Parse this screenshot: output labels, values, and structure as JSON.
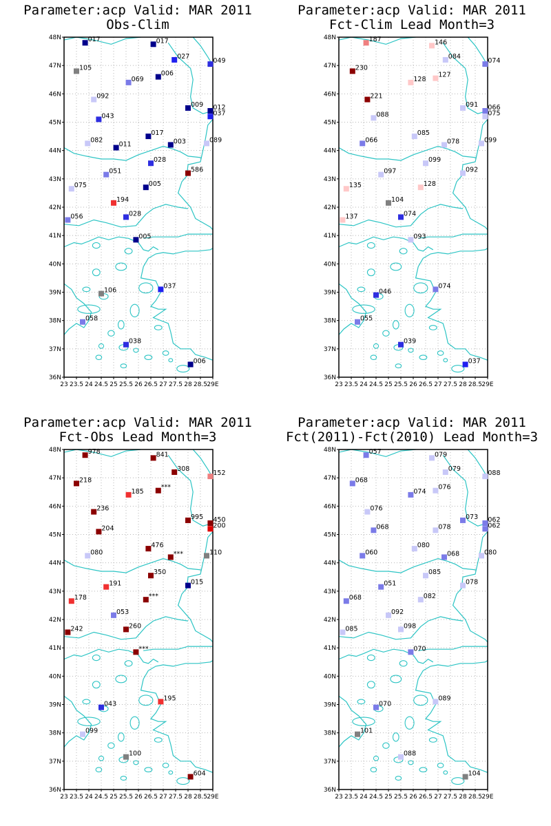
{
  "chart_data": [
    {
      "type": "scatter",
      "title": "Parameter:acp Valid: MAR 2011",
      "subtitle": "Obs-Clim",
      "xlim": [
        23,
        29
      ],
      "ylim": [
        36,
        48
      ],
      "xticks": [
        "23",
        "23.5",
        "24",
        "24.5",
        "25",
        "25.5",
        "26",
        "26.5",
        "27",
        "27.5",
        "28",
        "28.5",
        "29E"
      ],
      "yticks": [
        "36N",
        "37N",
        "38N",
        "39N",
        "40N",
        "41N",
        "42N",
        "43N",
        "44N",
        "45N",
        "46N",
        "47N",
        "48N"
      ],
      "stations": [
        {
          "lon": 23.85,
          "lat": 47.8,
          "label": "017",
          "color": "#00008b"
        },
        {
          "lon": 26.6,
          "lat": 47.75,
          "label": "017",
          "color": "#00008b"
        },
        {
          "lon": 27.45,
          "lat": 47.2,
          "label": "027",
          "color": "#2020f0"
        },
        {
          "lon": 28.9,
          "lat": 47.05,
          "label": "049",
          "color": "#2e2ee0"
        },
        {
          "lon": 23.5,
          "lat": 46.8,
          "label": "105",
          "color": "#808080"
        },
        {
          "lon": 25.6,
          "lat": 46.4,
          "label": "069",
          "color": "#7b7be8"
        },
        {
          "lon": 26.8,
          "lat": 46.6,
          "label": "006",
          "color": "#00008b"
        },
        {
          "lon": 24.2,
          "lat": 45.8,
          "label": "092",
          "color": "#c8c8f8"
        },
        {
          "lon": 28.0,
          "lat": 45.5,
          "label": "009",
          "color": "#00008b"
        },
        {
          "lon": 28.9,
          "lat": 45.4,
          "label": "012",
          "color": "#00008b"
        },
        {
          "lon": 28.9,
          "lat": 45.2,
          "label": "037",
          "color": "#2020f0"
        },
        {
          "lon": 24.4,
          "lat": 45.1,
          "label": "043",
          "color": "#2e2ee0"
        },
        {
          "lon": 26.4,
          "lat": 44.5,
          "label": "017",
          "color": "#00008b"
        },
        {
          "lon": 23.95,
          "lat": 44.25,
          "label": "082",
          "color": "#c8c8f8"
        },
        {
          "lon": 25.1,
          "lat": 44.1,
          "label": "011",
          "color": "#00008b"
        },
        {
          "lon": 27.3,
          "lat": 44.2,
          "label": "003",
          "color": "#00008b"
        },
        {
          "lon": 28.75,
          "lat": 44.25,
          "label": "089",
          "color": "#c8c8f8"
        },
        {
          "lon": 26.5,
          "lat": 43.55,
          "label": "028",
          "color": "#2e2ee0"
        },
        {
          "lon": 28.0,
          "lat": 43.2,
          "label": "586",
          "color": "#8b0000"
        },
        {
          "lon": 24.7,
          "lat": 43.15,
          "label": "051",
          "color": "#7b7be8"
        },
        {
          "lon": 23.3,
          "lat": 42.65,
          "label": "075",
          "color": "#c8c8f8"
        },
        {
          "lon": 26.3,
          "lat": 42.7,
          "label": "005",
          "color": "#00008b"
        },
        {
          "lon": 25.0,
          "lat": 42.15,
          "label": "194",
          "color": "#f03030"
        },
        {
          "lon": 25.5,
          "lat": 41.65,
          "label": "028",
          "color": "#2e2ee0"
        },
        {
          "lon": 23.15,
          "lat": 41.55,
          "label": "056",
          "color": "#7b7be8"
        },
        {
          "lon": 25.9,
          "lat": 40.85,
          "label": "005",
          "color": "#00008b"
        },
        {
          "lon": 24.5,
          "lat": 38.95,
          "label": "106",
          "color": "#808080"
        },
        {
          "lon": 26.9,
          "lat": 39.1,
          "label": "037",
          "color": "#2020f0"
        },
        {
          "lon": 23.75,
          "lat": 37.95,
          "label": "058",
          "color": "#7b7be8"
        },
        {
          "lon": 25.5,
          "lat": 37.15,
          "label": "038",
          "color": "#2e2ee0"
        },
        {
          "lon": 28.1,
          "lat": 36.45,
          "label": "006",
          "color": "#00008b"
        }
      ]
    },
    {
      "type": "scatter",
      "title": "Parameter:acp Valid: MAR 2011",
      "subtitle": "Fct-Clim Lead Month=3",
      "xlim": [
        23,
        29
      ],
      "ylim": [
        36,
        48
      ],
      "xticks": [
        "23",
        "23.5",
        "24",
        "24.5",
        "25",
        "25.5",
        "26",
        "26.5",
        "27",
        "27.5",
        "28",
        "28.5",
        "29E"
      ],
      "yticks": [
        "36N",
        "37N",
        "38N",
        "39N",
        "40N",
        "41N",
        "42N",
        "43N",
        "44N",
        "45N",
        "46N",
        "47N",
        "48N"
      ],
      "stations": [
        {
          "lon": 24.1,
          "lat": 47.8,
          "label": "187",
          "color": "#f08080"
        },
        {
          "lon": 26.75,
          "lat": 47.7,
          "label": "146",
          "color": "#ffc8c8"
        },
        {
          "lon": 27.3,
          "lat": 47.2,
          "label": "084",
          "color": "#c8c8f8"
        },
        {
          "lon": 28.9,
          "lat": 47.05,
          "label": "074",
          "color": "#7b7be8"
        },
        {
          "lon": 23.55,
          "lat": 46.8,
          "label": "230",
          "color": "#8b0000"
        },
        {
          "lon": 26.9,
          "lat": 46.55,
          "label": "127",
          "color": "#ffc8c8"
        },
        {
          "lon": 25.9,
          "lat": 46.4,
          "label": "128",
          "color": "#ffc8c8"
        },
        {
          "lon": 24.15,
          "lat": 45.8,
          "label": "221",
          "color": "#8b0000"
        },
        {
          "lon": 28.0,
          "lat": 45.5,
          "label": "091",
          "color": "#c8c8f8"
        },
        {
          "lon": 28.9,
          "lat": 45.4,
          "label": "066",
          "color": "#7b7be8"
        },
        {
          "lon": 28.9,
          "lat": 45.2,
          "label": "075",
          "color": "#c8c8f8"
        },
        {
          "lon": 24.4,
          "lat": 45.15,
          "label": "088",
          "color": "#c8c8f8"
        },
        {
          "lon": 26.05,
          "lat": 44.5,
          "label": "085",
          "color": "#c8c8f8"
        },
        {
          "lon": 27.25,
          "lat": 44.2,
          "label": "078",
          "color": "#c8c8f8"
        },
        {
          "lon": 28.75,
          "lat": 44.25,
          "label": "099",
          "color": "#c8c8f8"
        },
        {
          "lon": 23.95,
          "lat": 44.25,
          "label": "066",
          "color": "#7b7be8"
        },
        {
          "lon": 26.5,
          "lat": 43.55,
          "label": "099",
          "color": "#c8c8f8"
        },
        {
          "lon": 24.7,
          "lat": 43.15,
          "label": "097",
          "color": "#c8c8f8"
        },
        {
          "lon": 28.0,
          "lat": 43.2,
          "label": "092",
          "color": "#c8c8f8"
        },
        {
          "lon": 23.3,
          "lat": 42.65,
          "label": "135",
          "color": "#ffc8c8"
        },
        {
          "lon": 26.3,
          "lat": 42.7,
          "label": "128",
          "color": "#ffc8c8"
        },
        {
          "lon": 25.0,
          "lat": 42.15,
          "label": "104",
          "color": "#808080"
        },
        {
          "lon": 25.5,
          "lat": 41.65,
          "label": "074",
          "color": "#2e2ee0"
        },
        {
          "lon": 23.15,
          "lat": 41.55,
          "label": "137",
          "color": "#ffc8c8"
        },
        {
          "lon": 25.9,
          "lat": 40.85,
          "label": "093",
          "color": "#c8c8f8"
        },
        {
          "lon": 24.5,
          "lat": 38.9,
          "label": "046",
          "color": "#2e2ee0"
        },
        {
          "lon": 26.9,
          "lat": 39.1,
          "label": "074",
          "color": "#7b7be8"
        },
        {
          "lon": 23.75,
          "lat": 37.95,
          "label": "055",
          "color": "#7b7be8"
        },
        {
          "lon": 25.5,
          "lat": 37.15,
          "label": "039",
          "color": "#2e2ee0"
        },
        {
          "lon": 28.1,
          "lat": 36.45,
          "label": "037",
          "color": "#2020f0"
        }
      ]
    },
    {
      "type": "scatter",
      "title": "Parameter:acp Valid: MAR 2011",
      "subtitle": "Fct-Obs Lead Month=3",
      "xlim": [
        23,
        29
      ],
      "ylim": [
        36,
        48
      ],
      "xticks": [
        "23",
        "23.5",
        "24",
        "24.5",
        "25",
        "25.5",
        "26",
        "26.5",
        "27",
        "27.5",
        "28",
        "28.5",
        "29E"
      ],
      "yticks": [
        "36N",
        "37N",
        "38N",
        "39N",
        "40N",
        "41N",
        "42N",
        "43N",
        "44N",
        "45N",
        "46N",
        "47N",
        "48N"
      ],
      "stations": [
        {
          "lon": 23.85,
          "lat": 47.8,
          "label": "978",
          "color": "#8b0000"
        },
        {
          "lon": 26.6,
          "lat": 47.7,
          "label": "841",
          "color": "#8b0000"
        },
        {
          "lon": 27.45,
          "lat": 47.2,
          "label": "308",
          "color": "#8b0000"
        },
        {
          "lon": 28.9,
          "lat": 47.05,
          "label": "152",
          "color": "#f08080"
        },
        {
          "lon": 23.5,
          "lat": 46.8,
          "label": "218",
          "color": "#8b0000"
        },
        {
          "lon": 25.6,
          "lat": 46.4,
          "label": "185",
          "color": "#f03030"
        },
        {
          "lon": 26.8,
          "lat": 46.55,
          "label": "***",
          "color": "#8b0000"
        },
        {
          "lon": 24.2,
          "lat": 45.8,
          "label": "236",
          "color": "#8b0000"
        },
        {
          "lon": 28.0,
          "lat": 45.5,
          "label": "995",
          "color": "#8b0000"
        },
        {
          "lon": 28.9,
          "lat": 45.4,
          "label": "450",
          "color": "#8b0000"
        },
        {
          "lon": 28.9,
          "lat": 45.2,
          "label": "200",
          "color": "#e00000"
        },
        {
          "lon": 24.4,
          "lat": 45.1,
          "label": "204",
          "color": "#8b0000"
        },
        {
          "lon": 26.4,
          "lat": 44.5,
          "label": "476",
          "color": "#8b0000"
        },
        {
          "lon": 23.95,
          "lat": 44.25,
          "label": "080",
          "color": "#c8c8f8"
        },
        {
          "lon": 27.3,
          "lat": 44.2,
          "label": "***",
          "color": "#8b0000"
        },
        {
          "lon": 28.75,
          "lat": 44.25,
          "label": "110",
          "color": "#808080"
        },
        {
          "lon": 26.5,
          "lat": 43.55,
          "label": "350",
          "color": "#8b0000"
        },
        {
          "lon": 28.0,
          "lat": 43.2,
          "label": "015",
          "color": "#00008b"
        },
        {
          "lon": 24.7,
          "lat": 43.15,
          "label": "191",
          "color": "#f03030"
        },
        {
          "lon": 23.3,
          "lat": 42.65,
          "label": "178",
          "color": "#f03030"
        },
        {
          "lon": 26.3,
          "lat": 42.7,
          "label": "***",
          "color": "#8b0000"
        },
        {
          "lon": 25.0,
          "lat": 42.15,
          "label": "053",
          "color": "#7b7be8"
        },
        {
          "lon": 25.5,
          "lat": 41.65,
          "label": "260",
          "color": "#8b0000"
        },
        {
          "lon": 23.15,
          "lat": 41.55,
          "label": "242",
          "color": "#8b0000"
        },
        {
          "lon": 25.9,
          "lat": 40.85,
          "label": "***",
          "color": "#8b0000"
        },
        {
          "lon": 24.5,
          "lat": 38.9,
          "label": "043",
          "color": "#2e2ee0"
        },
        {
          "lon": 26.9,
          "lat": 39.1,
          "label": "195",
          "color": "#f03030"
        },
        {
          "lon": 23.75,
          "lat": 37.95,
          "label": "099",
          "color": "#c8c8f8"
        },
        {
          "lon": 25.5,
          "lat": 37.15,
          "label": "100",
          "color": "#808080"
        },
        {
          "lon": 28.1,
          "lat": 36.45,
          "label": "604",
          "color": "#8b0000"
        }
      ]
    },
    {
      "type": "scatter",
      "title": "Parameter:acp Valid: MAR 2011",
      "subtitle": "Fct(2011)-Fct(2010) Lead Month=3",
      "xlim": [
        23,
        29
      ],
      "ylim": [
        36,
        48
      ],
      "xticks": [
        "23",
        "23.5",
        "24",
        "24.5",
        "25",
        "25.5",
        "26",
        "26.5",
        "27",
        "27.5",
        "28",
        "28.5",
        "29E"
      ],
      "yticks": [
        "36N",
        "37N",
        "38N",
        "39N",
        "40N",
        "41N",
        "42N",
        "43N",
        "44N",
        "45N",
        "46N",
        "47N",
        "48N"
      ],
      "stations": [
        {
          "lon": 24.1,
          "lat": 47.8,
          "label": "057",
          "color": "#7b7be8"
        },
        {
          "lon": 26.75,
          "lat": 47.7,
          "label": "079",
          "color": "#c8c8f8"
        },
        {
          "lon": 27.3,
          "lat": 47.2,
          "label": "079",
          "color": "#c8c8f8"
        },
        {
          "lon": 28.9,
          "lat": 47.05,
          "label": "088",
          "color": "#c8c8f8"
        },
        {
          "lon": 23.55,
          "lat": 46.8,
          "label": "068",
          "color": "#7b7be8"
        },
        {
          "lon": 25.9,
          "lat": 46.4,
          "label": "074",
          "color": "#7b7be8"
        },
        {
          "lon": 26.9,
          "lat": 46.55,
          "label": "076",
          "color": "#c8c8f8"
        },
        {
          "lon": 24.15,
          "lat": 45.8,
          "label": "076",
          "color": "#c8c8f8"
        },
        {
          "lon": 28.0,
          "lat": 45.5,
          "label": "073",
          "color": "#7b7be8"
        },
        {
          "lon": 28.9,
          "lat": 45.4,
          "label": "062",
          "color": "#7b7be8"
        },
        {
          "lon": 28.9,
          "lat": 45.2,
          "label": "062",
          "color": "#7b7be8"
        },
        {
          "lon": 24.4,
          "lat": 45.15,
          "label": "068",
          "color": "#7b7be8"
        },
        {
          "lon": 26.9,
          "lat": 45.15,
          "label": "078",
          "color": "#c8c8f8"
        },
        {
          "lon": 26.05,
          "lat": 44.5,
          "label": "080",
          "color": "#c8c8f8"
        },
        {
          "lon": 23.95,
          "lat": 44.25,
          "label": "060",
          "color": "#7b7be8"
        },
        {
          "lon": 27.25,
          "lat": 44.2,
          "label": "068",
          "color": "#7b7be8"
        },
        {
          "lon": 28.75,
          "lat": 44.25,
          "label": "080",
          "color": "#c8c8f8"
        },
        {
          "lon": 26.5,
          "lat": 43.55,
          "label": "085",
          "color": "#c8c8f8"
        },
        {
          "lon": 24.7,
          "lat": 43.15,
          "label": "051",
          "color": "#7b7be8"
        },
        {
          "lon": 28.0,
          "lat": 43.2,
          "label": "078",
          "color": "#c8c8f8"
        },
        {
          "lon": 23.3,
          "lat": 42.65,
          "label": "068",
          "color": "#7b7be8"
        },
        {
          "lon": 26.3,
          "lat": 42.7,
          "label": "082",
          "color": "#c8c8f8"
        },
        {
          "lon": 25.0,
          "lat": 42.15,
          "label": "092",
          "color": "#c8c8f8"
        },
        {
          "lon": 25.5,
          "lat": 41.65,
          "label": "098",
          "color": "#c8c8f8"
        },
        {
          "lon": 23.15,
          "lat": 41.55,
          "label": "085",
          "color": "#c8c8f8"
        },
        {
          "lon": 25.9,
          "lat": 40.85,
          "label": "070",
          "color": "#7b7be8"
        },
        {
          "lon": 24.5,
          "lat": 38.9,
          "label": "070",
          "color": "#7b7be8"
        },
        {
          "lon": 26.9,
          "lat": 39.1,
          "label": "089",
          "color": "#c8c8f8"
        },
        {
          "lon": 23.75,
          "lat": 37.95,
          "label": "101",
          "color": "#808080"
        },
        {
          "lon": 25.5,
          "lat": 37.15,
          "label": "088",
          "color": "#c8c8f8"
        },
        {
          "lon": 28.1,
          "lat": 36.45,
          "label": "104",
          "color": "#808080"
        }
      ]
    }
  ],
  "colors": {
    "coastline": "#2bc4c4",
    "grid": "#b4b4b4",
    "frame": "#000000"
  }
}
